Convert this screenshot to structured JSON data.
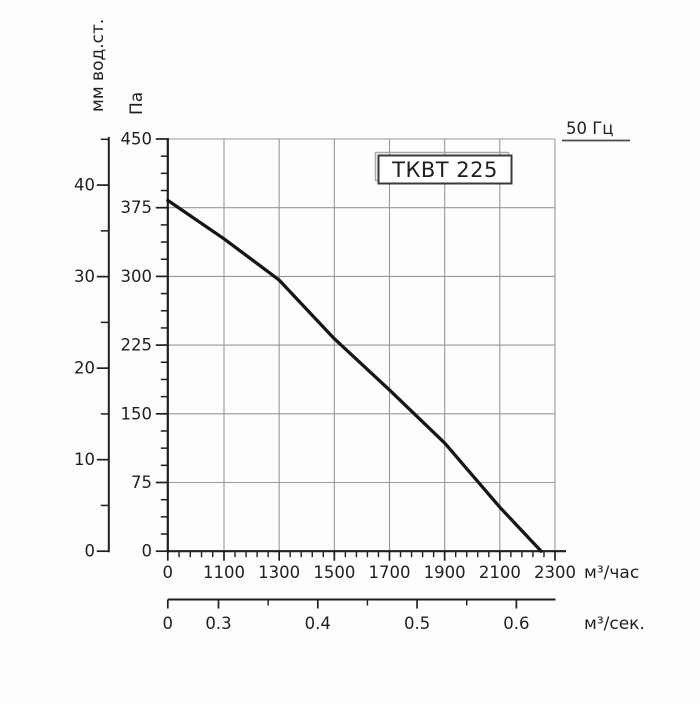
{
  "title_box": {
    "label": "ТКВТ 225"
  },
  "frequency_label": "50 Гц",
  "colors": {
    "background": "#fdfdfb",
    "axis": "#1f1f1f",
    "grid": "#989898",
    "curve": "#161616",
    "text": "#1f1f1f",
    "box_border": "#3a3a3a",
    "box_shadow": "#aaaaaa",
    "underline": "#4a4a4a"
  },
  "chart_data": {
    "type": "line",
    "title": "ТКВТ 225",
    "frequency": "50 Гц",
    "xlabel": "м³/час",
    "xlabel_secondary": "м³/сек.",
    "ylabel": "Па",
    "ylabel_secondary": "мм вод.ст.",
    "xlim": [
      0,
      2300
    ],
    "ylim": [
      0,
      450
    ],
    "grid": true,
    "x_ticks": [
      0,
      1100,
      1300,
      1500,
      1700,
      1900,
      2100,
      2300
    ],
    "x_minor_divisions": 5,
    "y_ticks": [
      0,
      75,
      150,
      225,
      300,
      375,
      450
    ],
    "y_minor_divisions": 4,
    "y2_ticks": [
      0,
      10,
      20,
      30,
      40
    ],
    "y2_minor_ticks": [
      5,
      15,
      25,
      35,
      45
    ],
    "x2_ticks": [
      "0",
      "0.3",
      "0.4",
      "0.5",
      "0.6"
    ],
    "x2_minor_ticks": [
      "0.35",
      "0.45",
      "0.55"
    ],
    "series": [
      {
        "name": "ТКВТ 225, 50 Гц",
        "x": [
          0,
          1100,
          1300,
          1500,
          1700,
          1900,
          2100,
          2250
        ],
        "y": [
          383,
          341,
          296,
          232,
          176,
          118,
          48,
          0
        ]
      }
    ]
  }
}
